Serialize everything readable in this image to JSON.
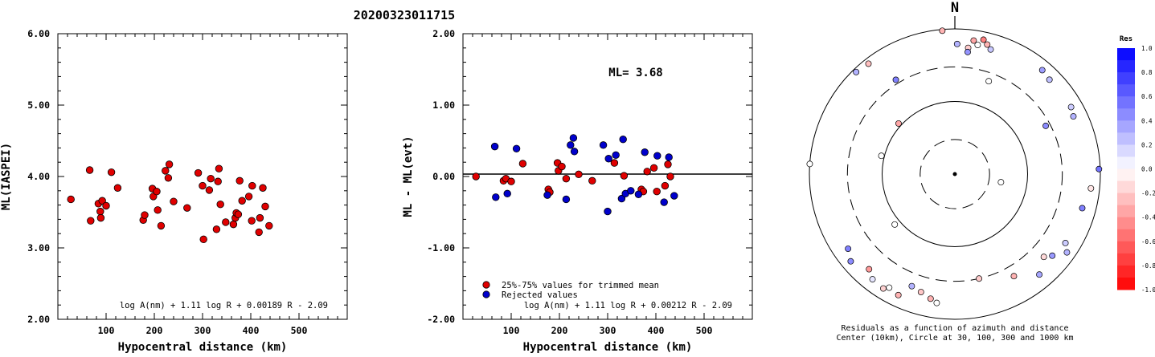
{
  "title": "20200323011715",
  "chart_data": [
    {
      "type": "scatter",
      "ylabel": "ML(IASPEI)",
      "xlabel": "Hypocentral distance (km)",
      "xlim": [
        0,
        600
      ],
      "ylim": [
        2.0,
        6.0
      ],
      "xticks": [
        "100",
        "200",
        "300",
        "400",
        "500"
      ],
      "yticks": [
        "2.00",
        "3.00",
        "4.00",
        "5.00",
        "6.00"
      ],
      "formula": "log A(nm) + 1.11 log R + 0.00189 R - 2.09",
      "marker_color": "#e00000",
      "points": [
        [
          27,
          3.68
        ],
        [
          66,
          4.09
        ],
        [
          68,
          3.38
        ],
        [
          84,
          3.62
        ],
        [
          88,
          3.51
        ],
        [
          89,
          3.42
        ],
        [
          92,
          3.66
        ],
        [
          100,
          3.59
        ],
        [
          111,
          4.06
        ],
        [
          124,
          3.84
        ],
        [
          177,
          3.39
        ],
        [
          180,
          3.46
        ],
        [
          196,
          3.83
        ],
        [
          198,
          3.72
        ],
        [
          205,
          3.79
        ],
        [
          207,
          3.53
        ],
        [
          214,
          3.31
        ],
        [
          223,
          4.08
        ],
        [
          229,
          3.98
        ],
        [
          231,
          4.17
        ],
        [
          240,
          3.65
        ],
        [
          268,
          3.56
        ],
        [
          291,
          4.05
        ],
        [
          300,
          3.87
        ],
        [
          302,
          3.12
        ],
        [
          314,
          3.81
        ],
        [
          317,
          3.97
        ],
        [
          329,
          3.26
        ],
        [
          332,
          3.93
        ],
        [
          334,
          4.11
        ],
        [
          337,
          3.61
        ],
        [
          348,
          3.36
        ],
        [
          364,
          3.33
        ],
        [
          368,
          3.42
        ],
        [
          370,
          3.49
        ],
        [
          374,
          3.47
        ],
        [
          377,
          3.94
        ],
        [
          382,
          3.66
        ],
        [
          396,
          3.72
        ],
        [
          402,
          3.38
        ],
        [
          403,
          3.87
        ],
        [
          417,
          3.22
        ],
        [
          419,
          3.42
        ],
        [
          425,
          3.84
        ],
        [
          430,
          3.58
        ],
        [
          438,
          3.31
        ]
      ]
    },
    {
      "type": "scatter",
      "ylabel": "ML - ML(evt)",
      "xlabel": "Hypocentral distance (km)",
      "xlim": [
        0,
        600
      ],
      "ylim": [
        -2.0,
        2.0
      ],
      "xticks": [
        "100",
        "200",
        "300",
        "400",
        "500"
      ],
      "yticks": [
        "-2.00",
        "-1.00",
        "0.00",
        "1.00",
        "2.00"
      ],
      "annotation": "ML= 3.68",
      "formula": "log A(nm) + 1.11 log R + 0.00212 R - 2.09",
      "legend": [
        {
          "label": "25%-75% values for trimmed mean",
          "color": "#e00000"
        },
        {
          "label": "Rejected values",
          "color": "#0000cc"
        }
      ],
      "series": [
        {
          "color": "#e00000",
          "points": [
            [
              27,
              0.0
            ],
            [
              84,
              -0.06
            ],
            [
              89,
              -0.03
            ],
            [
              100,
              -0.07
            ],
            [
              124,
              0.18
            ],
            [
              177,
              -0.18
            ],
            [
              180,
              -0.22
            ],
            [
              196,
              0.19
            ],
            [
              198,
              0.08
            ],
            [
              205,
              0.14
            ],
            [
              214,
              -0.03
            ],
            [
              240,
              0.03
            ],
            [
              268,
              -0.06
            ],
            [
              314,
              0.19
            ],
            [
              334,
              0.01
            ],
            [
              370,
              -0.18
            ],
            [
              374,
              -0.21
            ],
            [
              382,
              0.07
            ],
            [
              396,
              0.12
            ],
            [
              402,
              -0.21
            ],
            [
              419,
              -0.13
            ],
            [
              425,
              0.17
            ],
            [
              430,
              0.0
            ]
          ]
        },
        {
          "color": "#0000cc",
          "points": [
            [
              66,
              0.42
            ],
            [
              68,
              -0.29
            ],
            [
              92,
              -0.24
            ],
            [
              111,
              0.39
            ],
            [
              175,
              -0.26
            ],
            [
              214,
              -0.32
            ],
            [
              223,
              0.44
            ],
            [
              229,
              0.54
            ],
            [
              231,
              0.35
            ],
            [
              291,
              0.44
            ],
            [
              300,
              -0.49
            ],
            [
              302,
              0.25
            ],
            [
              317,
              0.3
            ],
            [
              329,
              -0.31
            ],
            [
              332,
              0.52
            ],
            [
              337,
              -0.24
            ],
            [
              348,
              -0.2
            ],
            [
              364,
              -0.25
            ],
            [
              377,
              0.34
            ],
            [
              403,
              0.29
            ],
            [
              417,
              -0.36
            ],
            [
              427,
              0.27
            ],
            [
              438,
              -0.27
            ]
          ]
        }
      ]
    },
    {
      "type": "polar-scatter",
      "north_label": "N",
      "caption_line1": "Residuals as a function of azimuth and distance",
      "caption_line2": "Center (10km), Circle at 30, 100, 300 and 1000 km",
      "colorbar_title": "Res",
      "colorbar_ticks": [
        "1.0",
        "0.8",
        "0.6",
        "0.4",
        "0.2",
        "0.0",
        "-0.2",
        "-0.4",
        "-0.6",
        "-0.8",
        "-1.0"
      ],
      "rings_km": [
        30,
        100,
        300,
        1000
      ],
      "ring_styles": [
        "dashed",
        "solid",
        "dashed",
        "solid"
      ],
      "points": [
        {
          "az": 1,
          "dist_km": 620,
          "res": 0.3
        },
        {
          "az": 6,
          "dist_km": 560,
          "res": -0.2
        },
        {
          "az": 6,
          "dist_km": 490,
          "res": 0.42
        },
        {
          "az": 8,
          "dist_km": 720,
          "res": -0.35
        },
        {
          "az": 10,
          "dist_km": 640,
          "res": 0.0
        },
        {
          "az": 12,
          "dist_km": 780,
          "res": -0.5
        },
        {
          "az": 14,
          "dist_km": 690,
          "res": -0.3
        },
        {
          "az": 16,
          "dist_km": 610,
          "res": 0.22
        },
        {
          "az": 20,
          "dist_km": 230,
          "res": 0.0
        },
        {
          "az": 40,
          "dist_km": 740,
          "res": 0.38
        },
        {
          "az": 45,
          "dist_km": 690,
          "res": 0.25
        },
        {
          "az": 62,
          "dist_km": 260,
          "res": 0.45
        },
        {
          "az": 60,
          "dist_km": 700,
          "res": 0.2
        },
        {
          "az": 64,
          "dist_km": 650,
          "res": 0.3
        },
        {
          "az": 88,
          "dist_km": 960,
          "res": 0.55
        },
        {
          "az": 96,
          "dist_km": 760,
          "res": -0.1
        },
        {
          "az": 105,
          "dist_km": 650,
          "res": 0.5
        },
        {
          "az": 100,
          "dist_km": 44,
          "res": 0.0
        },
        {
          "az": 125,
          "dist_km": 760,
          "res": 0.3
        },
        {
          "az": 122,
          "dist_km": 620,
          "res": 0.2
        },
        {
          "az": 130,
          "dist_km": 560,
          "res": 0.4
        },
        {
          "az": 133,
          "dist_km": 470,
          "res": -0.15
        },
        {
          "az": 140,
          "dist_km": 640,
          "res": 0.35
        },
        {
          "az": 150,
          "dist_km": 420,
          "res": -0.3
        },
        {
          "az": 167,
          "dist_km": 300,
          "res": -0.2
        },
        {
          "az": 188,
          "dist_km": 620,
          "res": 0.0
        },
        {
          "az": 191,
          "dist_km": 560,
          "res": -0.3
        },
        {
          "az": 196,
          "dist_km": 490,
          "res": -0.22
        },
        {
          "az": 201,
          "dist_km": 450,
          "res": 0.3
        },
        {
          "az": 205,
          "dist_km": 690,
          "res": -0.3
        },
        {
          "az": 210,
          "dist_km": 640,
          "res": 0.0
        },
        {
          "az": 212,
          "dist_km": 720,
          "res": -0.18
        },
        {
          "az": 218,
          "dist_km": 690,
          "res": 0.1
        },
        {
          "az": 222,
          "dist_km": 580,
          "res": -0.4
        },
        {
          "az": 230,
          "dist_km": 740,
          "res": 0.45
        },
        {
          "az": 235,
          "dist_km": 620,
          "res": 0.5
        },
        {
          "az": 230,
          "dist_km": 120,
          "res": 0.0
        },
        {
          "az": 284,
          "dist_km": 110,
          "res": 0.0
        },
        {
          "az": 274,
          "dist_km": 1000,
          "res": 0.0
        },
        {
          "az": 312,
          "dist_km": 110,
          "res": -0.35
        },
        {
          "az": 316,
          "dist_km": 900,
          "res": 0.3
        },
        {
          "az": 322,
          "dist_km": 850,
          "res": -0.25
        },
        {
          "az": 328,
          "dist_km": 340,
          "res": 0.5
        },
        {
          "az": 355,
          "dist_km": 960,
          "res": -0.3
        }
      ]
    }
  ]
}
